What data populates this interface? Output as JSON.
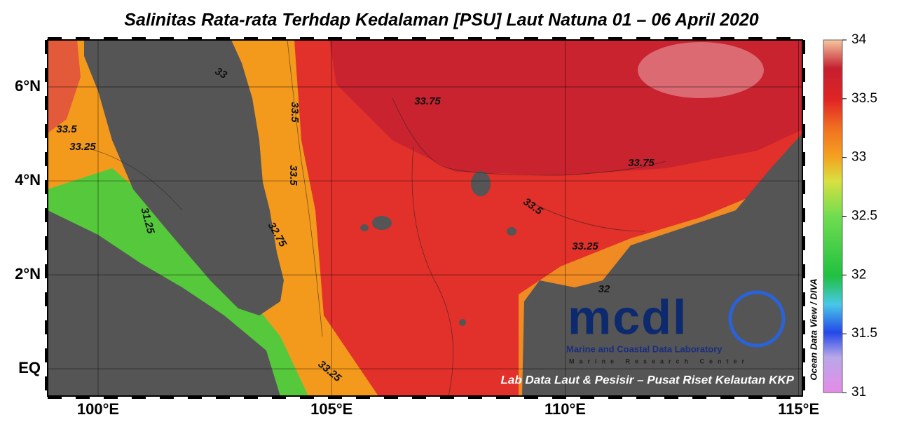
{
  "title": "Salinitas Rata-rata Terhdap Kedalaman [PSU] Laut Natuna 01 – 06 April 2020",
  "map": {
    "xlim": [
      98.92,
      115.08
    ],
    "ylim": [
      -0.58,
      7.0
    ],
    "xticks": [
      {
        "value": 100,
        "label": "100°E"
      },
      {
        "value": 105,
        "label": "105°E"
      },
      {
        "value": 110,
        "label": "110°E"
      },
      {
        "value": 115,
        "label": "115°E"
      }
    ],
    "yticks": [
      {
        "value": 0,
        "label": "EQ"
      },
      {
        "value": 2,
        "label": "2°N"
      },
      {
        "value": 4,
        "label": "4°N"
      },
      {
        "value": 6,
        "label": "6°N"
      }
    ],
    "contour_labels": [
      "33.75",
      "33.5",
      "33.75",
      "33.5",
      "33.5",
      "33.25",
      "33.25",
      "33.5",
      "33.25",
      "32.75",
      "31.25",
      "32",
      "33"
    ]
  },
  "colorbar": {
    "lim": [
      31,
      34
    ],
    "ticks": [
      31,
      31.5,
      32,
      32.5,
      33,
      33.5,
      34
    ],
    "label": "Ocean Data View / DIVA"
  },
  "logo": {
    "mark": "mcdl",
    "name": "Marine and Coastal Data Laboratory",
    "sub": "Marine Research Center"
  },
  "credit": "Lab Data Laut & Pesisir – Pusat Riset Kelautan KKP"
}
